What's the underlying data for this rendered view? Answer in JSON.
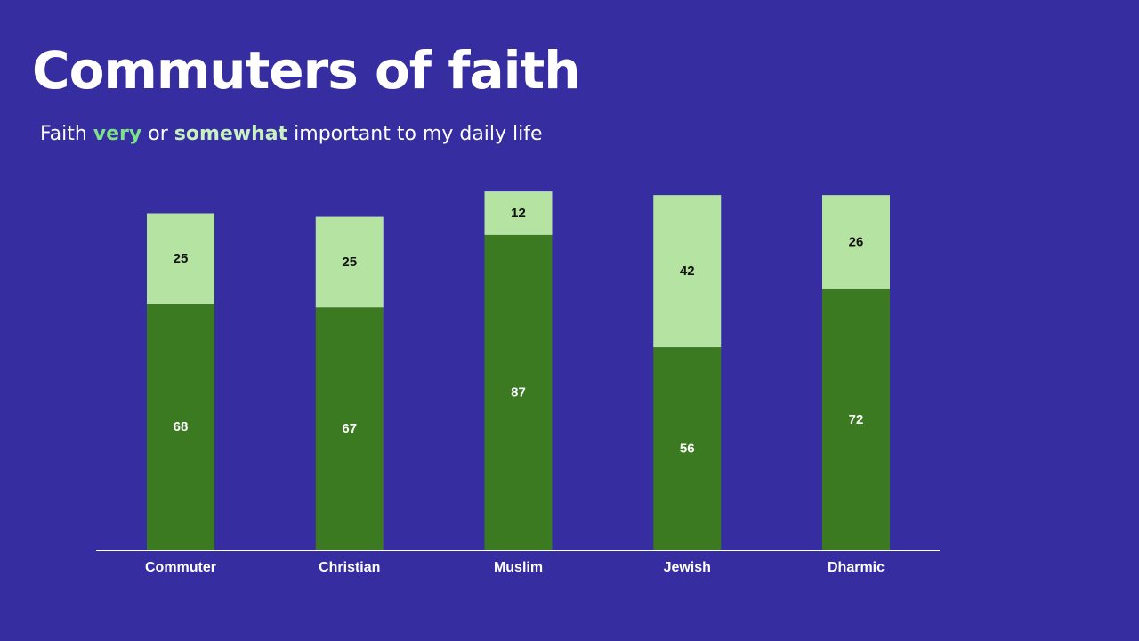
{
  "colors": {
    "background": "#352da0",
    "very": "#3b7a21",
    "somewhat": "#b5e4a2",
    "very_text": "#7ee08a",
    "somewhat_text": "#c8f0c0",
    "axis": "#ffffff"
  },
  "slide": {
    "title": "Commuters of faith",
    "subtitle": {
      "prefix": "Faith ",
      "very": "very",
      "middle": " or ",
      "somewhat": "somewhat",
      "suffix": " important to my daily life"
    }
  },
  "chart_data": {
    "type": "bar",
    "stacked": true,
    "title": "Commuters of faith",
    "subtitle": "Faith very or somewhat important to my daily life",
    "categories": [
      "Commuter",
      "Christian",
      "Muslim",
      "Jewish",
      "Dharmic"
    ],
    "series": [
      {
        "name": "very",
        "values": [
          68,
          67,
          87,
          56,
          72
        ]
      },
      {
        "name": "somewhat",
        "values": [
          25,
          25,
          12,
          42,
          26
        ]
      }
    ],
    "xlabel": "",
    "ylabel": "",
    "ylim": [
      0,
      100
    ],
    "grid": false,
    "legend": "none"
  }
}
